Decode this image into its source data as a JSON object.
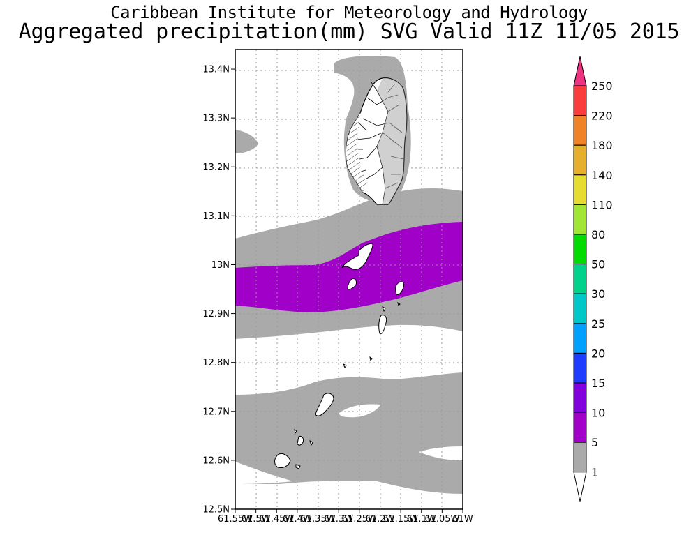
{
  "title": {
    "line1": "Caribbean Institute for Meteorology and Hydrology",
    "line2": "Aggregated precipitation(mm) SVG Valid 11Z 11/05 2015"
  },
  "map": {
    "lat_labels": [
      "13.4N",
      "13.3N",
      "13.2N",
      "13.1N",
      "13N",
      "12.9N",
      "12.8N",
      "12.7N",
      "12.6N",
      "12.5N"
    ],
    "lat_values": [
      13.4,
      13.3,
      13.2,
      13.1,
      13.0,
      12.9,
      12.8,
      12.7,
      12.6,
      12.5
    ],
    "lon_labels": [
      "61.55W",
      "61.5W",
      "61.45W",
      "61.4W",
      "61.35W",
      "61.3W",
      "61.25W",
      "61.2W",
      "61.15W",
      "61.1W",
      "61.05W",
      "61W"
    ],
    "lat_range": [
      12.5,
      13.44
    ],
    "lon_range": [
      -61.55,
      -61.0
    ],
    "colors": {
      "band_1_5": "#aaaaaa",
      "band_5_10": "#a000c8",
      "land_outline": "#000000",
      "grid": "#9a9a9a"
    }
  },
  "colorbar": {
    "levels": [
      "250",
      "220",
      "180",
      "140",
      "110",
      "80",
      "50",
      "30",
      "25",
      "20",
      "15",
      "10",
      "5",
      "1"
    ],
    "colors": [
      "#f03282",
      "#fa3c3c",
      "#f08228",
      "#e6af2d",
      "#e6dc32",
      "#a0e632",
      "#00dc00",
      "#00d28c",
      "#00c8c8",
      "#00a0ff",
      "#1e3cff",
      "#8200dc",
      "#a000c8",
      "#aaaaaa",
      "#ffffff"
    ]
  }
}
